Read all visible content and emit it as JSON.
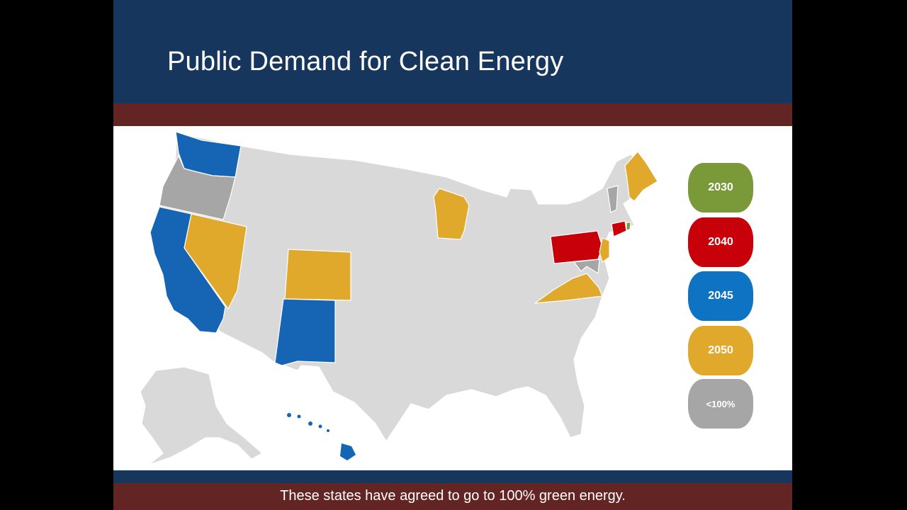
{
  "slide": {
    "title": "Public Demand for Clean Energy",
    "caption": "These states have agreed to go to 100% green energy."
  },
  "legend": [
    {
      "label": "2030",
      "color": "#7a9a3a"
    },
    {
      "label": "2040",
      "color": "#c8000a"
    },
    {
      "label": "2045",
      "color": "#1565b4"
    },
    {
      "label": "2050",
      "color": "#e0a92c"
    },
    {
      "label": "<100%",
      "color": "#a6a6a6"
    }
  ],
  "colors": {
    "default_state": "#d9d9d9",
    "title_bar": "#17365d",
    "stripe": "#632523"
  },
  "states": {
    "2030": [
      "Rhode Island"
    ],
    "2040": [
      "Pennsylvania",
      "Connecticut"
    ],
    "2045": [
      "Washington",
      "California",
      "New Mexico",
      "Hawaii"
    ],
    "2050": [
      "Nevada",
      "Colorado",
      "Wisconsin",
      "Maine",
      "Virginia",
      "New Jersey"
    ],
    "<100%": [
      "Oregon",
      "Vermont",
      "Maryland"
    ]
  }
}
